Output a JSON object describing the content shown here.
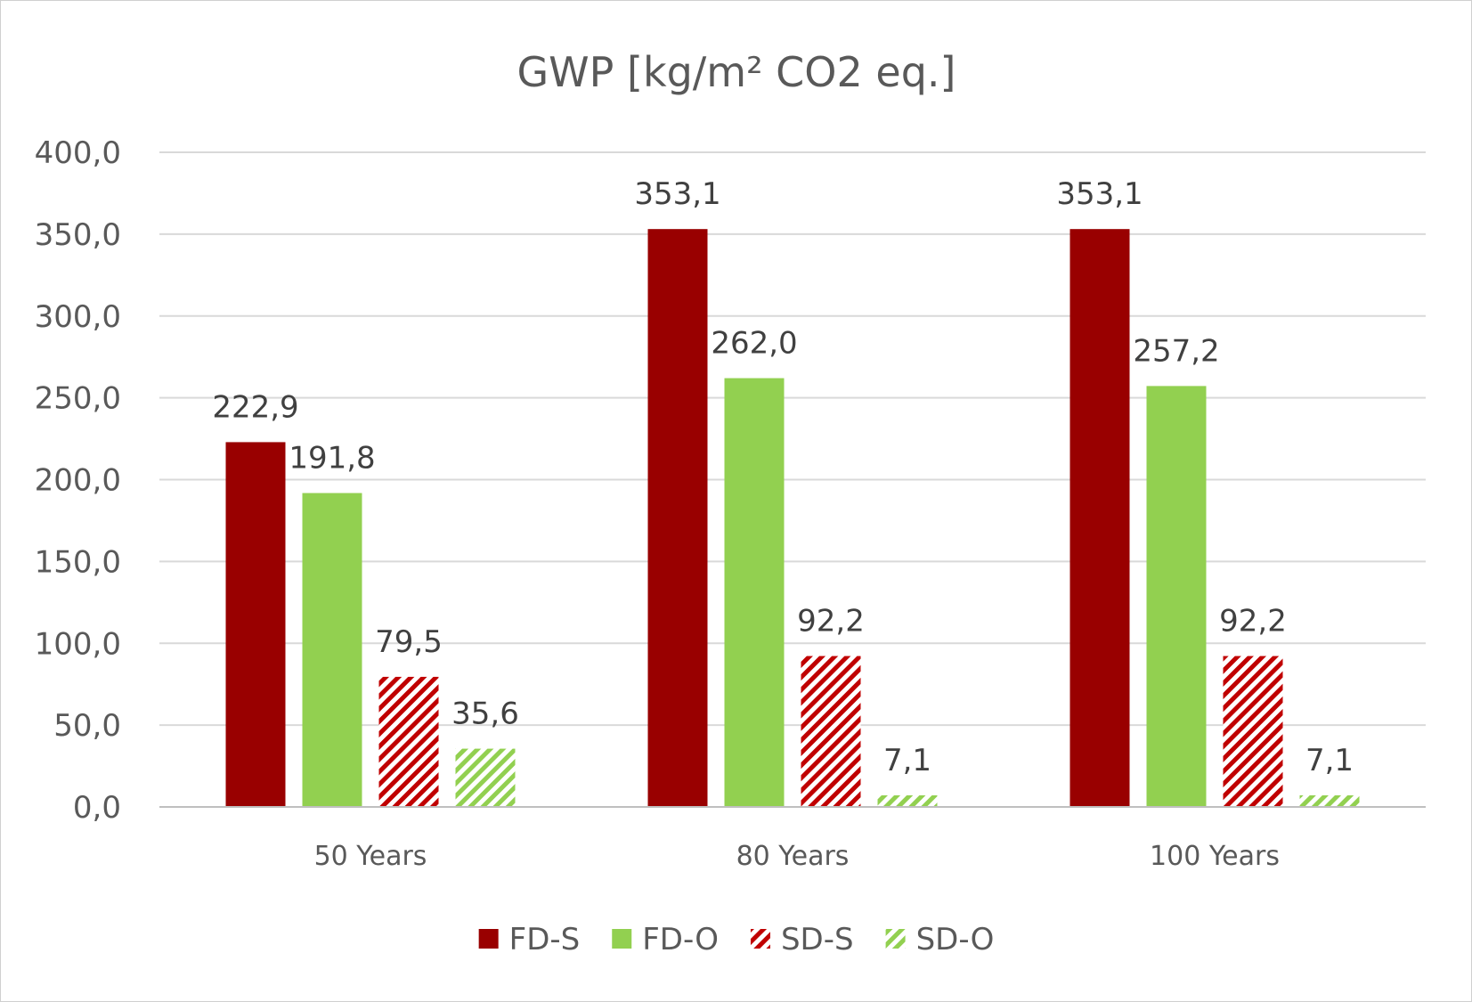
{
  "chart_data": {
    "type": "bar",
    "title": "GWP [kg/m² CO2 eq.]",
    "xlabel": "",
    "ylabel": "",
    "ylim": [
      0,
      400
    ],
    "yticks": [
      "0,0",
      "50,0",
      "100,0",
      "150,0",
      "200,0",
      "250,0",
      "300,0",
      "350,0",
      "400,0"
    ],
    "grid": true,
    "legend_position": "bottom",
    "categories": [
      "50 Years",
      "80 Years",
      "100 Years"
    ],
    "series": [
      {
        "name": "FD-S",
        "values": [
          222.9,
          353.1,
          353.1
        ],
        "labels": [
          "222,9",
          "353,1",
          "353,1"
        ],
        "color": "#990000",
        "pattern": "solid"
      },
      {
        "name": "FD-O",
        "values": [
          191.8,
          262.0,
          257.2
        ],
        "labels": [
          "191,8",
          "262,0",
          "257,2"
        ],
        "color": "#92d050",
        "pattern": "solid"
      },
      {
        "name": "SD-S",
        "values": [
          79.5,
          92.2,
          92.2
        ],
        "labels": [
          "79,5",
          "92,2",
          "92,2"
        ],
        "color": "#c00000",
        "pattern": "hatched"
      },
      {
        "name": "SD-O",
        "values": [
          35.6,
          7.1,
          7.1
        ],
        "labels": [
          "35,6",
          "7,1",
          "7,1"
        ],
        "color": "#92d050",
        "pattern": "hatched"
      }
    ]
  }
}
